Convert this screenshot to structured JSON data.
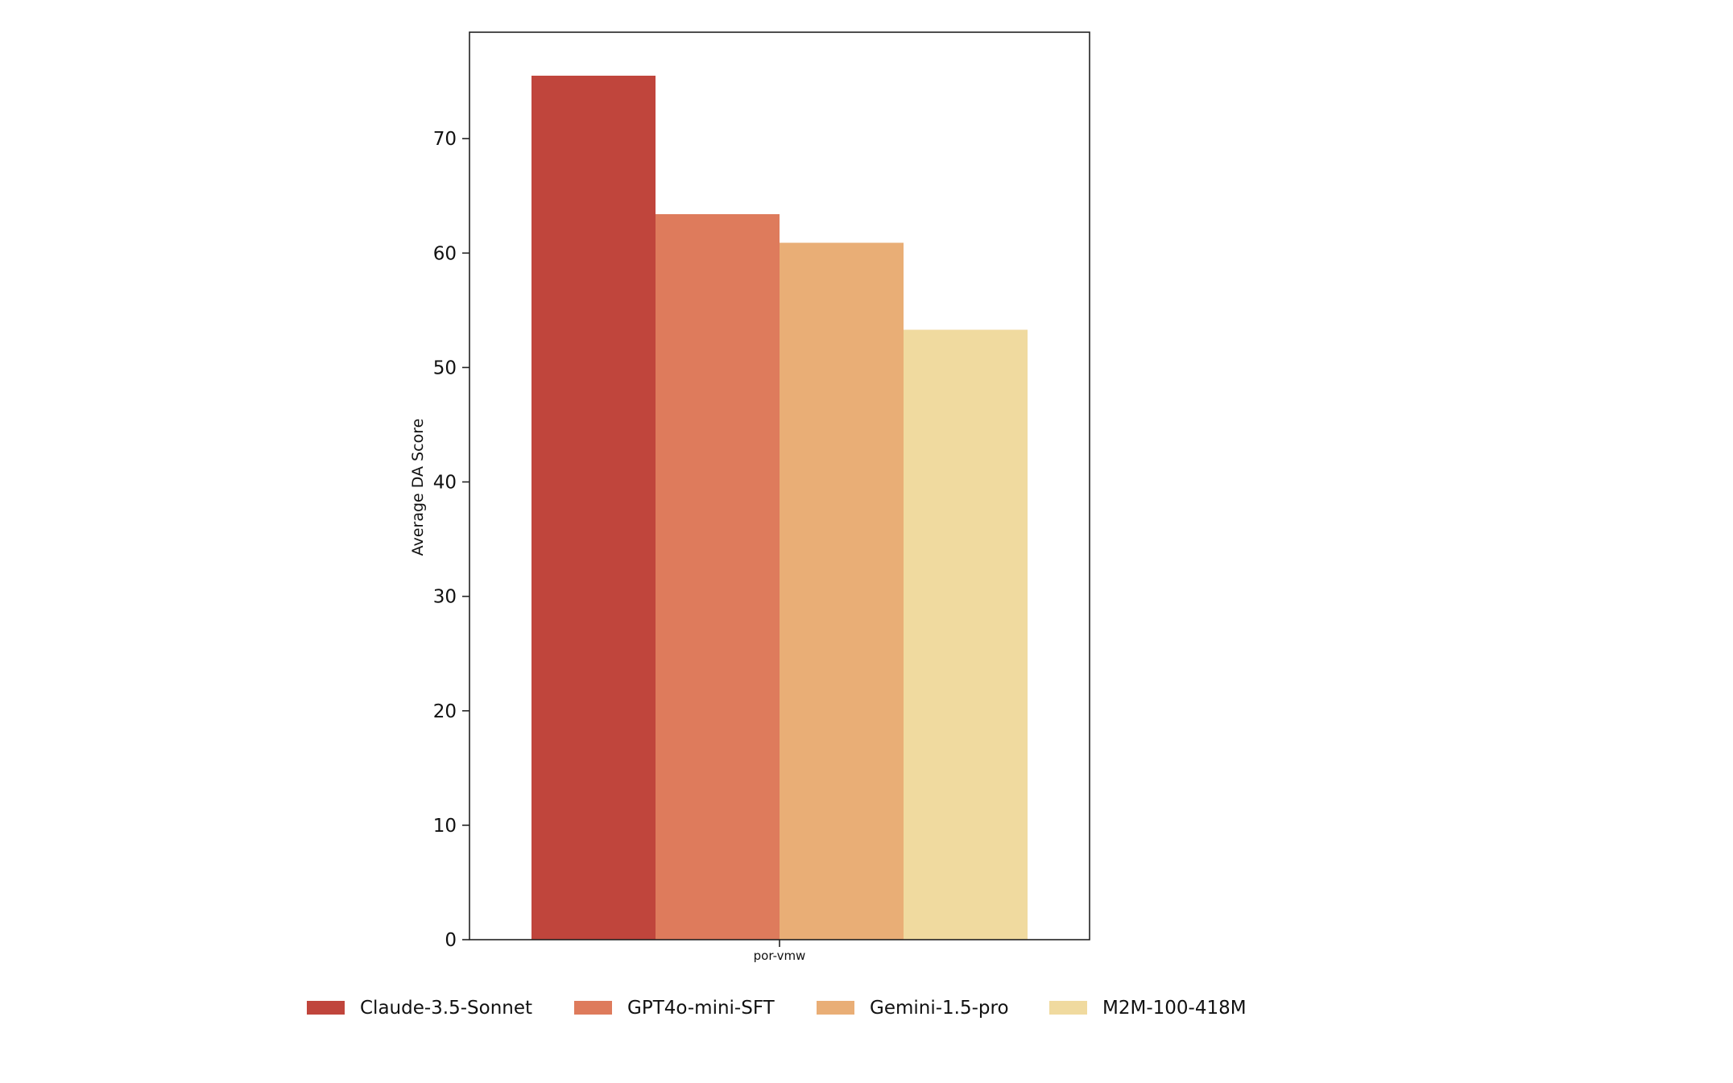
{
  "chart_data": {
    "type": "bar",
    "categories": [
      "por-vmw"
    ],
    "series": [
      {
        "name": "Claude-3.5-Sonnet",
        "values": [
          75.5
        ],
        "color": "#c0453c"
      },
      {
        "name": "GPT4o-mini-SFT",
        "values": [
          63.4
        ],
        "color": "#de7b5c"
      },
      {
        "name": "Gemini-1.5-pro",
        "values": [
          60.9
        ],
        "color": "#e9ae76"
      },
      {
        "name": "M2M-100-418M",
        "values": [
          53.3
        ],
        "color": "#f0da9f"
      }
    ],
    "title": "",
    "xlabel": "",
    "ylabel": "Average DA Score",
    "ylim": [
      0,
      79.3
    ],
    "yticks": [
      0,
      10,
      20,
      30,
      40,
      50,
      60,
      70
    ],
    "grid": false,
    "legend_position": "bottom"
  }
}
